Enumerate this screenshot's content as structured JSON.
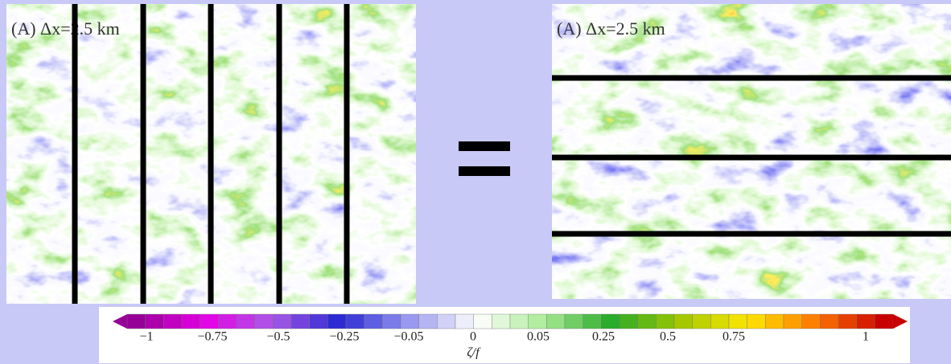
{
  "panels": [
    {
      "label": "(A) Δx=2.5 km"
    },
    {
      "label": "(A) Δx=2.5 km"
    }
  ],
  "colorbar": {
    "ticks": [
      "−1",
      "−0.75",
      "−0.5",
      "−0.25",
      "−0.05",
      "0",
      "0.05",
      "0.25",
      "0.5",
      "0.75",
      "1"
    ],
    "label": "ζ/f"
  }
}
